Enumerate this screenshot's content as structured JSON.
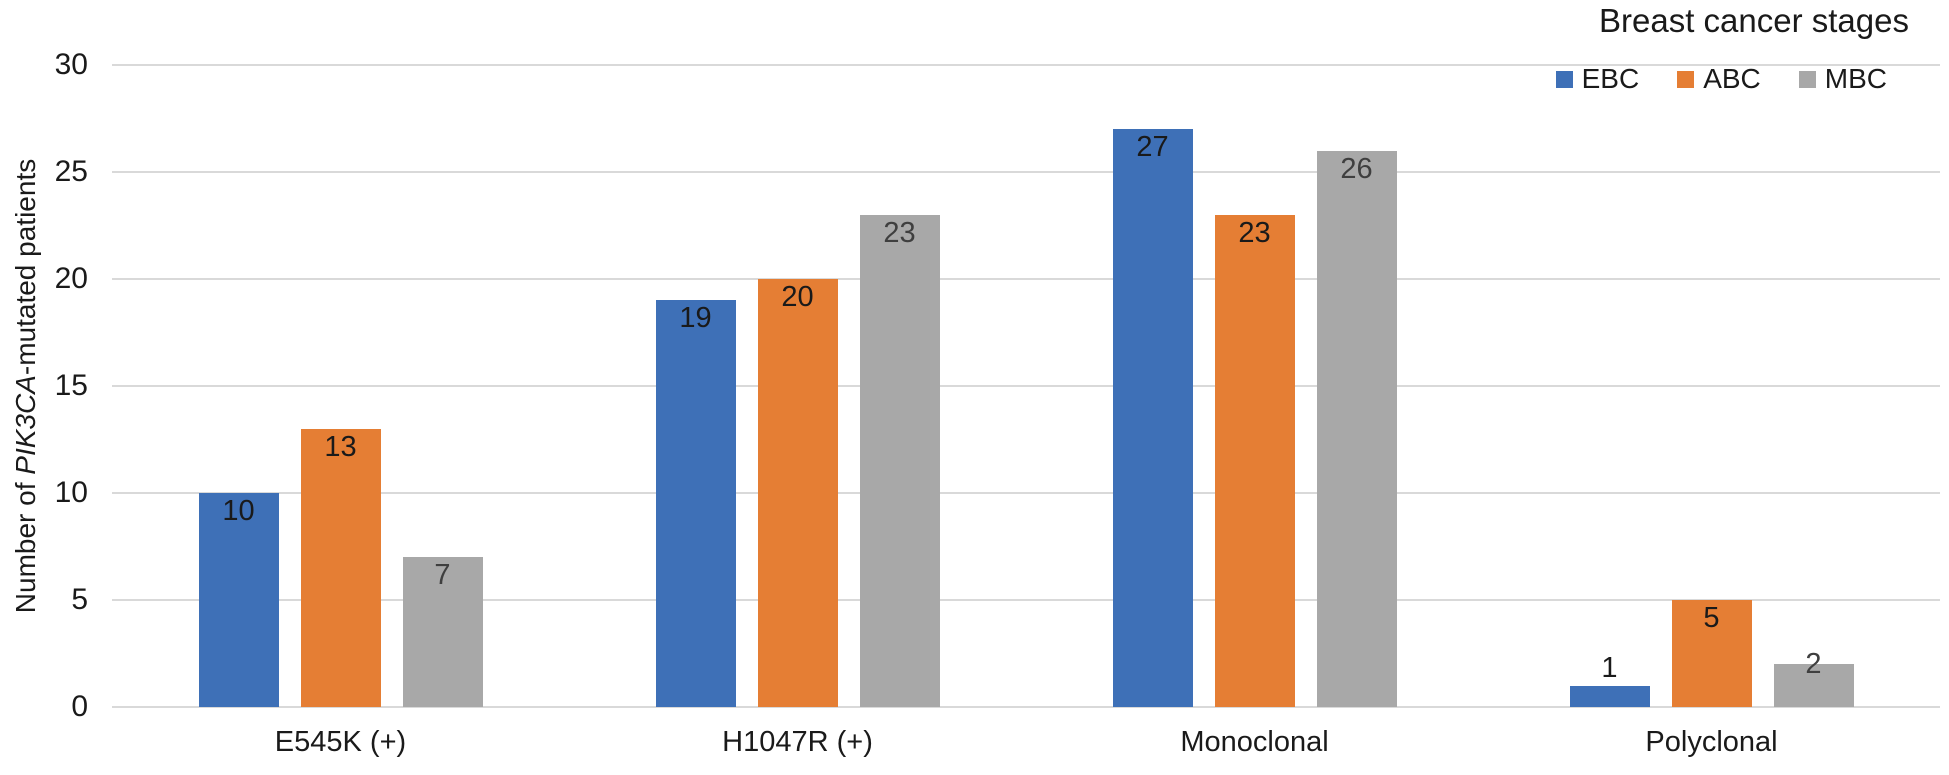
{
  "chart": {
    "y_axis_title_parts": {
      "prefix": "Number of ",
      "italic": "PIK3CA",
      "suffix": "-mutated patients"
    }
  },
  "chart_data": {
    "type": "bar",
    "title": "Breast cancer stages",
    "title_role": "legend-title",
    "categories": [
      "E545K (+)",
      "H1047R (+)",
      "Monoclonal",
      "Polyclonal"
    ],
    "series": [
      {
        "name": "EBC",
        "color": "#3E70B7",
        "label_color": "#1a1a1a",
        "values": [
          10,
          19,
          27,
          1
        ]
      },
      {
        "name": "ABC",
        "color": "#E57E34",
        "label_color": "#1a1a1a",
        "values": [
          13,
          20,
          23,
          5
        ]
      },
      {
        "name": "MBC",
        "color": "#A8A8A8",
        "label_color": "#3f3f3f",
        "values": [
          7,
          23,
          26,
          2
        ]
      }
    ],
    "xlabel": "",
    "ylabel": "Number of PIK3CA-mutated patients",
    "ylabel_italic_part": "PIK3CA",
    "ylim": [
      0,
      30
    ],
    "yticks": [
      0,
      5,
      10,
      15,
      20,
      25,
      30
    ],
    "grid": true,
    "gridline_color": "#D9D9D9",
    "data_labels": true,
    "data_label_placement": "inside-end",
    "legend_position": "top-right",
    "background_color": "#ffffff"
  }
}
